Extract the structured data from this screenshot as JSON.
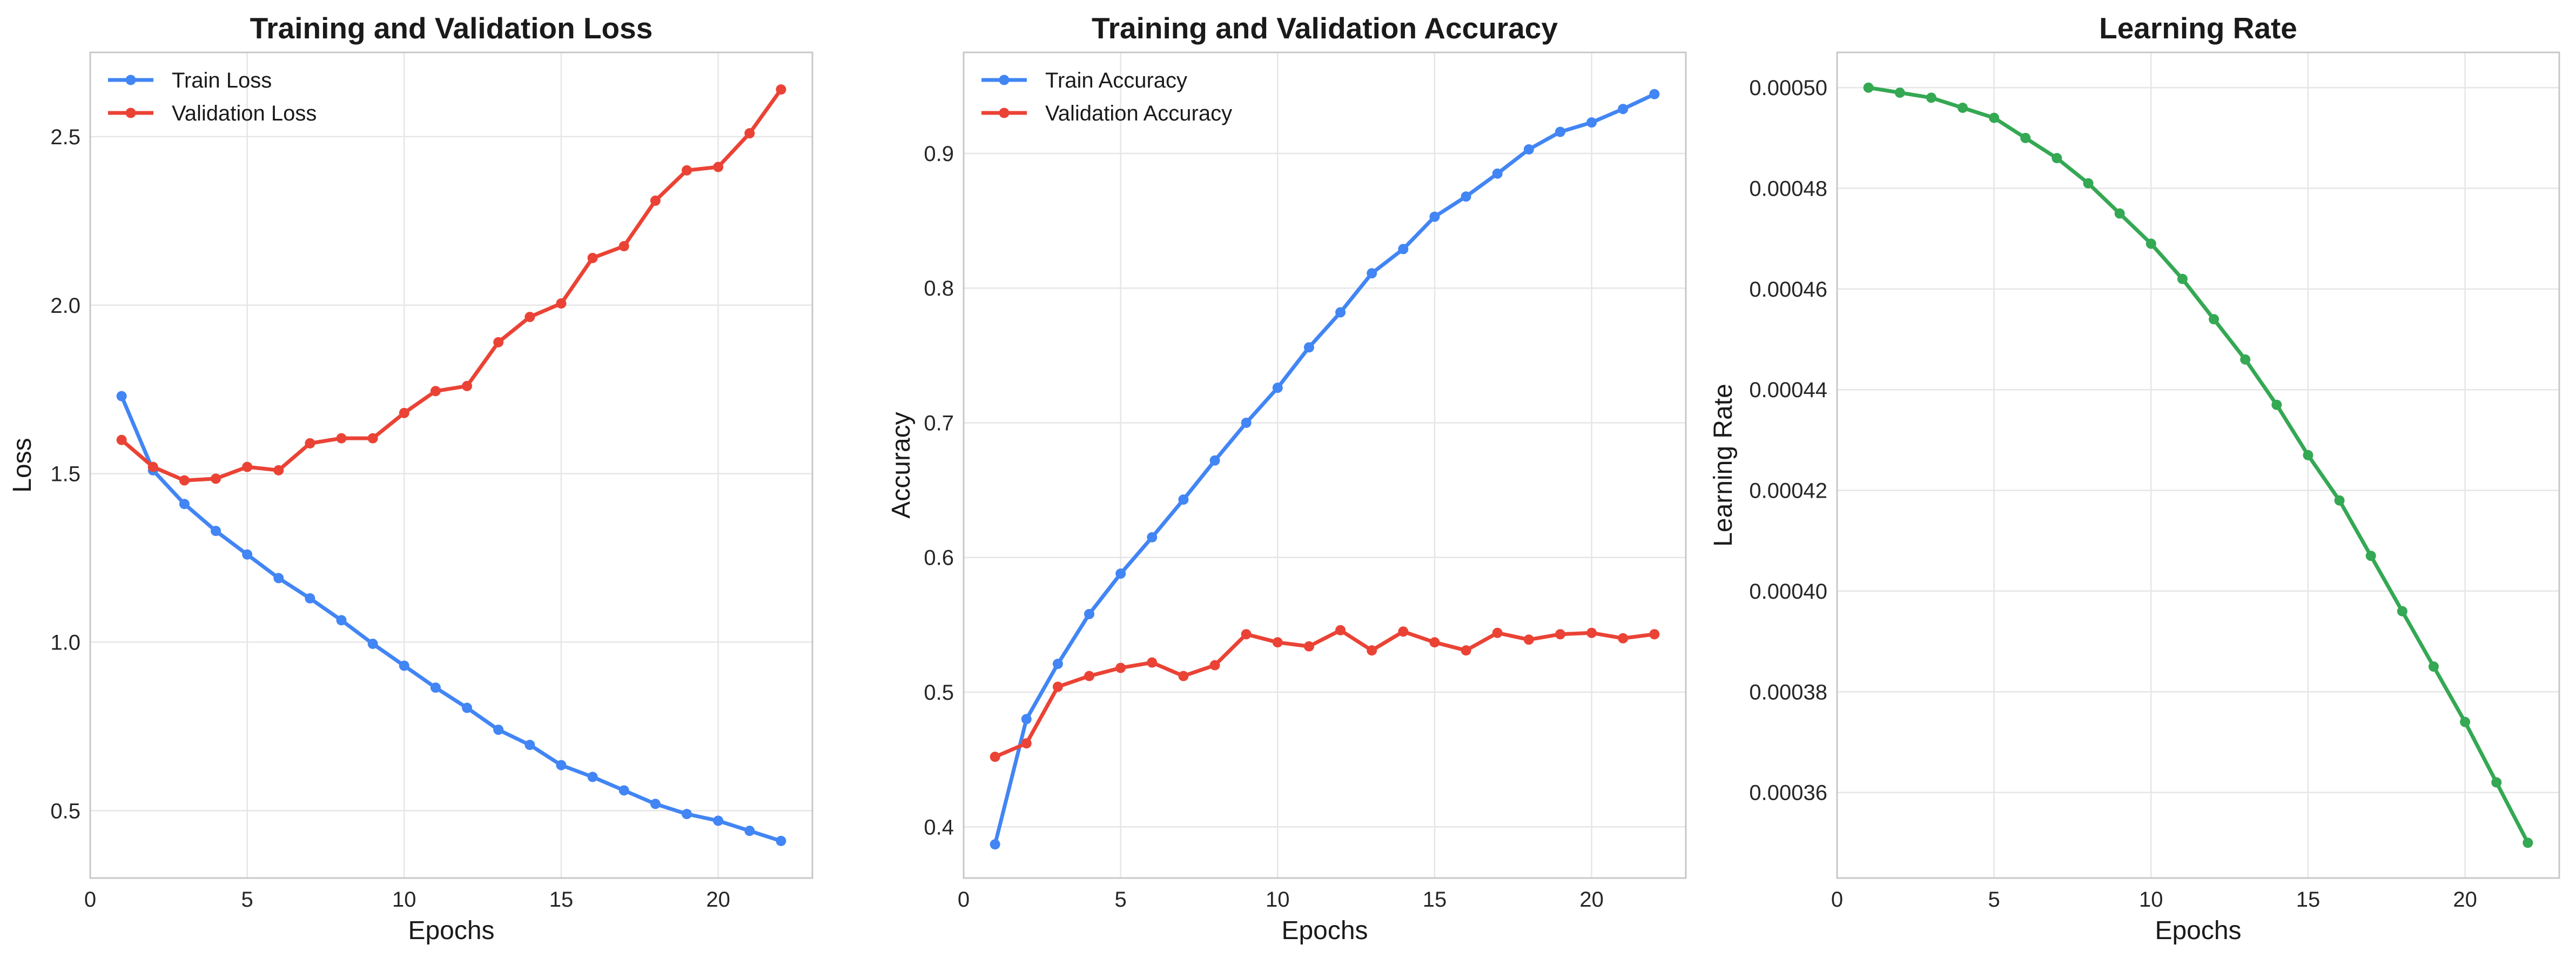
{
  "figure": {
    "panels": [
      {
        "title": "Training and Validation Loss",
        "legend": [
          "Train Loss",
          "Validation Loss"
        ],
        "y_ticks": [
          "0.5",
          "1.0",
          "1.5",
          "2.0",
          "2.5"
        ],
        "xlabel": "Epochs",
        "ylabel": "Loss",
        "x_ticks": [
          "0",
          "5",
          "10",
          "15",
          "20"
        ]
      },
      {
        "title": "Training and Validation Accuracy",
        "legend": [
          "Train Accuracy",
          "Validation Accuracy"
        ],
        "y_ticks": [
          "0.4",
          "0.5",
          "0.6",
          "0.7",
          "0.8",
          "0.9"
        ],
        "xlabel": "Epochs",
        "ylabel": "Accuracy",
        "x_ticks": [
          "0",
          "5",
          "10",
          "15",
          "20"
        ]
      },
      {
        "title": "Learning Rate",
        "legend": [],
        "y_ticks": [
          "0.00036",
          "0.00038",
          "0.00040",
          "0.00042",
          "0.00044",
          "0.00046",
          "0.00048",
          "0.00050"
        ],
        "xlabel": "Epochs",
        "ylabel": "Learning Rate",
        "x_ticks": [
          "0",
          "5",
          "10",
          "15",
          "20"
        ]
      }
    ]
  },
  "chart_data": [
    {
      "type": "line",
      "title": "Training and Validation Loss",
      "xlabel": "Epochs",
      "ylabel": "Loss",
      "xlim": [
        0,
        23
      ],
      "ylim": [
        0.3,
        2.75
      ],
      "grid": true,
      "legend_position": "top-left",
      "x": [
        1,
        2,
        3,
        4,
        5,
        6,
        7,
        8,
        9,
        10,
        11,
        12,
        13,
        14,
        15,
        16,
        17,
        18,
        19,
        20,
        21,
        22
      ],
      "series": [
        {
          "name": "Train Loss",
          "color": "#4285f4",
          "values": [
            1.73,
            1.51,
            1.41,
            1.33,
            1.26,
            1.19,
            1.13,
            1.065,
            0.995,
            0.93,
            0.865,
            0.805,
            0.74,
            0.695,
            0.635,
            0.6,
            0.56,
            0.52,
            0.49,
            0.47,
            0.44,
            0.41
          ]
        },
        {
          "name": "Validation Loss",
          "color": "#ea4335",
          "values": [
            1.6,
            1.52,
            1.48,
            1.485,
            1.52,
            1.51,
            1.59,
            1.605,
            1.605,
            1.68,
            1.745,
            1.76,
            1.89,
            1.965,
            2.005,
            2.14,
            2.175,
            2.31,
            2.4,
            2.41,
            2.51,
            2.64
          ]
        }
      ]
    },
    {
      "type": "line",
      "title": "Training and Validation Accuracy",
      "xlabel": "Epochs",
      "ylabel": "Accuracy",
      "xlim": [
        0,
        23
      ],
      "ylim": [
        0.362,
        0.975
      ],
      "grid": true,
      "legend_position": "top-left",
      "x": [
        1,
        2,
        3,
        4,
        5,
        6,
        7,
        8,
        9,
        10,
        11,
        12,
        13,
        14,
        15,
        16,
        17,
        18,
        19,
        20,
        21,
        22
      ],
      "series": [
        {
          "name": "Train Accuracy",
          "color": "#4285f4",
          "values": [
            0.387,
            0.48,
            0.521,
            0.558,
            0.588,
            0.615,
            0.643,
            0.672,
            0.7,
            0.726,
            0.756,
            0.782,
            0.811,
            0.829,
            0.853,
            0.868,
            0.885,
            0.903,
            0.916,
            0.923,
            0.933,
            0.944
          ]
        },
        {
          "name": "Validation Accuracy",
          "color": "#ea4335",
          "values": [
            0.452,
            0.462,
            0.504,
            0.512,
            0.518,
            0.522,
            0.512,
            0.52,
            0.543,
            0.537,
            0.534,
            0.546,
            0.531,
            0.545,
            0.537,
            0.531,
            0.544,
            0.539,
            0.543,
            0.544,
            0.54,
            0.543
          ]
        }
      ]
    },
    {
      "type": "line",
      "title": "Learning Rate",
      "xlabel": "Epochs",
      "ylabel": "Learning Rate",
      "xlim": [
        0,
        23
      ],
      "ylim": [
        0.000343,
        0.000507
      ],
      "grid": true,
      "x": [
        1,
        2,
        3,
        4,
        5,
        6,
        7,
        8,
        9,
        10,
        11,
        12,
        13,
        14,
        15,
        16,
        17,
        18,
        19,
        20,
        21,
        22
      ],
      "series": [
        {
          "color": "#34a853",
          "values": [
            0.0005,
            0.000499,
            0.000498,
            0.000496,
            0.000494,
            0.00049,
            0.000486,
            0.000481,
            0.000475,
            0.000469,
            0.000462,
            0.000454,
            0.000446,
            0.000437,
            0.000427,
            0.000418,
            0.000407,
            0.000396,
            0.000385,
            0.000374,
            0.000362,
            0.00035
          ]
        }
      ]
    }
  ]
}
